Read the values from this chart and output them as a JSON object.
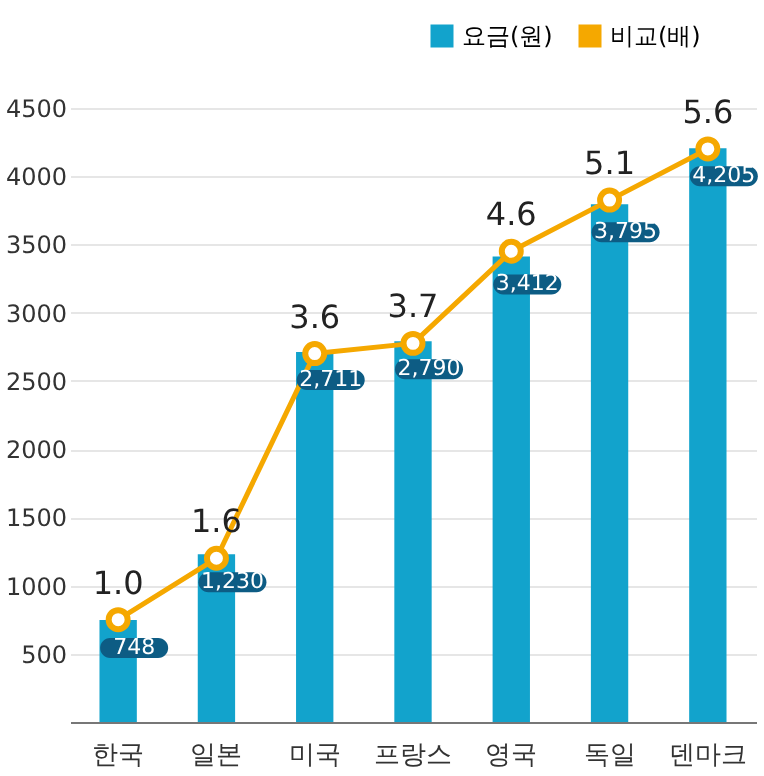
{
  "chart_data": {
    "type": "bar",
    "categories": [
      "한국",
      "일본",
      "미국",
      "프랑스",
      "영국",
      "독일",
      "덴마크"
    ],
    "series": [
      {
        "name": "요금(원)",
        "color": "#12a3cc",
        "values": [
          748,
          1230,
          2711,
          2790,
          3412,
          3795,
          4205
        ],
        "value_labels": [
          "748",
          "1,230",
          "2,711",
          "2,790",
          "3,412",
          "3,795",
          "4,205"
        ]
      },
      {
        "name": "비교(배)",
        "type": "line",
        "axis": "y2",
        "color": "#f5a800",
        "values": [
          1.0,
          1.6,
          3.6,
          3.7,
          4.6,
          5.1,
          5.6
        ],
        "value_labels": [
          "1.0",
          "1.6",
          "3.6",
          "3.7",
          "4.6",
          "5.1",
          "5.6"
        ]
      }
    ],
    "ylim": [
      0,
      4500
    ],
    "yticks": [
      500,
      1000,
      1500,
      2000,
      2500,
      3000,
      3500,
      4000,
      4500
    ],
    "y2lim": [
      0,
      6
    ],
    "grid": "y",
    "legend": "top right",
    "marker": "circle",
    "line_style": "solid"
  }
}
